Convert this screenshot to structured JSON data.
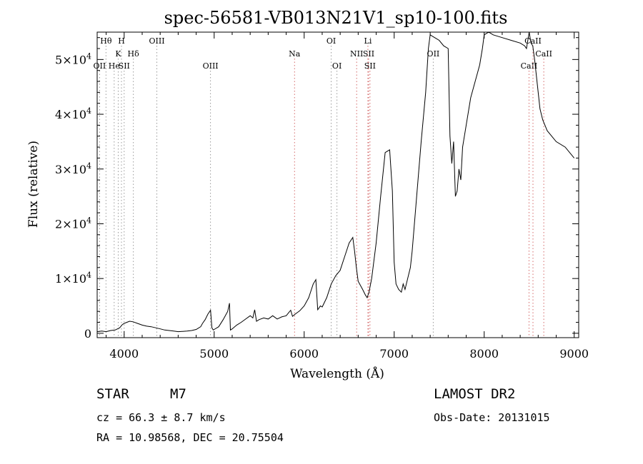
{
  "chart_data": {
    "type": "line",
    "title": "spec-56581-VB013N21V1_sp10-100.fits",
    "xlabel": "Wavelength (Å)",
    "ylabel": "Flux (relative)",
    "xlim": [
      3700,
      9050
    ],
    "ylim": [
      -800,
      55000
    ],
    "xticks": [
      4000,
      5000,
      6000,
      7000,
      8000,
      9000
    ],
    "yticks": [
      {
        "value": 0,
        "mantissa": "0",
        "exponent": ""
      },
      {
        "value": 10000,
        "mantissa": "1×10",
        "exponent": "4"
      },
      {
        "value": 20000,
        "mantissa": "2×10",
        "exponent": "4"
      },
      {
        "value": 30000,
        "mantissa": "3×10",
        "exponent": "4"
      },
      {
        "value": 40000,
        "mantissa": "4×10",
        "exponent": "4"
      },
      {
        "value": 50000,
        "mantissa": "5×10",
        "exponent": "4"
      }
    ],
    "grid": false,
    "series": [
      {
        "x": [
          3700,
          3750,
          3800,
          3850,
          3900,
          3950,
          3980,
          4000,
          4030,
          4060,
          4100,
          4150,
          4200,
          4250,
          4300,
          4350,
          4400,
          4450,
          4500,
          4550,
          4600,
          4650,
          4700,
          4750,
          4800,
          4850,
          4870,
          4900,
          4930,
          4960,
          4975,
          4990,
          5000,
          5050,
          5100,
          5150,
          5170,
          5180,
          5200,
          5250,
          5300,
          5350,
          5400,
          5430,
          5450,
          5470,
          5500,
          5550,
          5600,
          5650,
          5700,
          5750,
          5800,
          5830,
          5850,
          5870,
          5900,
          5950,
          6000,
          6050,
          6100,
          6130,
          6150,
          6160,
          6180,
          6200,
          6250,
          6300,
          6350,
          6400,
          6450,
          6500,
          6540,
          6560,
          6580,
          6600,
          6650,
          6680,
          6700,
          6720,
          6750,
          6800,
          6850,
          6900,
          6950,
          6980,
          7000,
          7020,
          7050,
          7080,
          7100,
          7120,
          7150,
          7180,
          7200,
          7250,
          7300,
          7350,
          7380,
          7400,
          7450,
          7500,
          7550,
          7600,
          7620,
          7640,
          7660,
          7680,
          7700,
          7720,
          7740,
          7760,
          7800,
          7850,
          7900,
          7950,
          7980,
          8000,
          8050,
          8100,
          8200,
          8300,
          8400,
          8450,
          8470,
          8500,
          8520,
          8540,
          8560,
          8580,
          8600,
          8620,
          8650,
          8700,
          8800,
          8900,
          9000
        ],
        "y": [
          300,
          400,
          300,
          500,
          600,
          1000,
          1600,
          1800,
          2000,
          2200,
          2100,
          1800,
          1500,
          1300,
          1200,
          1000,
          800,
          600,
          500,
          400,
          300,
          350,
          400,
          500,
          700,
          1200,
          1800,
          2500,
          3500,
          4200,
          1000,
          600,
          700,
          1200,
          2500,
          4000,
          5500,
          600,
          800,
          1500,
          2000,
          2600,
          3200,
          2800,
          4300,
          2200,
          2500,
          2800,
          2600,
          3200,
          2600,
          3000,
          3200,
          3800,
          4200,
          3100,
          3500,
          4100,
          5000,
          6500,
          9000,
          9800,
          4300,
          4500,
          5000,
          4800,
          6500,
          9000,
          10500,
          11500,
          14000,
          16500,
          17500,
          15000,
          12000,
          9500,
          8000,
          7000,
          6500,
          7500,
          10000,
          16500,
          25000,
          33000,
          33500,
          26000,
          13000,
          9000,
          8000,
          7500,
          9000,
          8000,
          10000,
          12000,
          15000,
          25000,
          35000,
          44000,
          52000,
          54500,
          54000,
          53500,
          52500,
          52000,
          36000,
          31000,
          35000,
          25000,
          26000,
          30000,
          28000,
          34000,
          38000,
          43000,
          46000,
          49000,
          52000,
          54500,
          55000,
          54500,
          54000,
          53500,
          53000,
          52500,
          52000,
          55000,
          53000,
          52500,
          50000,
          47000,
          44000,
          41000,
          39000,
          37000,
          35000,
          34000,
          32000
        ]
      }
    ],
    "lines": [
      {
        "wl": 3727,
        "label": "OII",
        "row": 3,
        "color": "#9a9a9a"
      },
      {
        "wl": 3798,
        "label": "Hθ",
        "row": 1,
        "color": "#9a9a9a"
      },
      {
        "wl": 3889,
        "label": "He",
        "row": 3,
        "color": "#9a9a9a"
      },
      {
        "wl": 3934,
        "label": "K",
        "row": 2,
        "color": "#9a9a9a"
      },
      {
        "wl": 3970,
        "label": "H",
        "row": 1,
        "color": "#9a9a9a"
      },
      {
        "wl": 4000,
        "label": "SII",
        "row": 3,
        "color": "#9a9a9a"
      },
      {
        "wl": 4102,
        "label": "Hδ",
        "row": 2,
        "color": "#9a9a9a"
      },
      {
        "wl": 4363,
        "label": "OIII",
        "row": 1,
        "color": "#9a9a9a"
      },
      {
        "wl": 4959,
        "label": "OIII",
        "row": 3,
        "color": "#9a9a9a"
      },
      {
        "wl": 5893,
        "label": "Na",
        "row": 2,
        "color": "#d46a6a"
      },
      {
        "wl": 6300,
        "label": "OI",
        "row": 1,
        "color": "#9a9a9a"
      },
      {
        "wl": 6364,
        "label": "OI",
        "row": 3,
        "color": "#9a9a9a"
      },
      {
        "wl": 6583,
        "label": "NII",
        "row": 2,
        "color": "#d46a6a"
      },
      {
        "wl": 6708,
        "label": "Li",
        "row": 1,
        "color": "#d46a6a"
      },
      {
        "wl": 6716,
        "label": "SII",
        "row": 2,
        "color": "#d46a6a"
      },
      {
        "wl": 6731,
        "label": "SII",
        "row": 3,
        "color": "#d46a6a"
      },
      {
        "wl": 7434,
        "label": "OII",
        "row": 2,
        "color": "#9a9a9a"
      },
      {
        "wl": 8498,
        "label": "CaII",
        "row": 3,
        "color": "#d46a6a"
      },
      {
        "wl": 8542,
        "label": "CaII",
        "row": 1,
        "color": "#d46a6a"
      },
      {
        "wl": 8662,
        "label": "CaII",
        "row": 2,
        "color": "#d46a6a"
      }
    ]
  },
  "info": {
    "object_class": "STAR",
    "subclass": "M7",
    "survey": "LAMOST DR2",
    "redshift": "cz = 66.3 ± 8.7 km/s",
    "obs_date": "Obs-Date: 20131015",
    "coords": "RA =  10.98568, DEC =  20.75504"
  }
}
